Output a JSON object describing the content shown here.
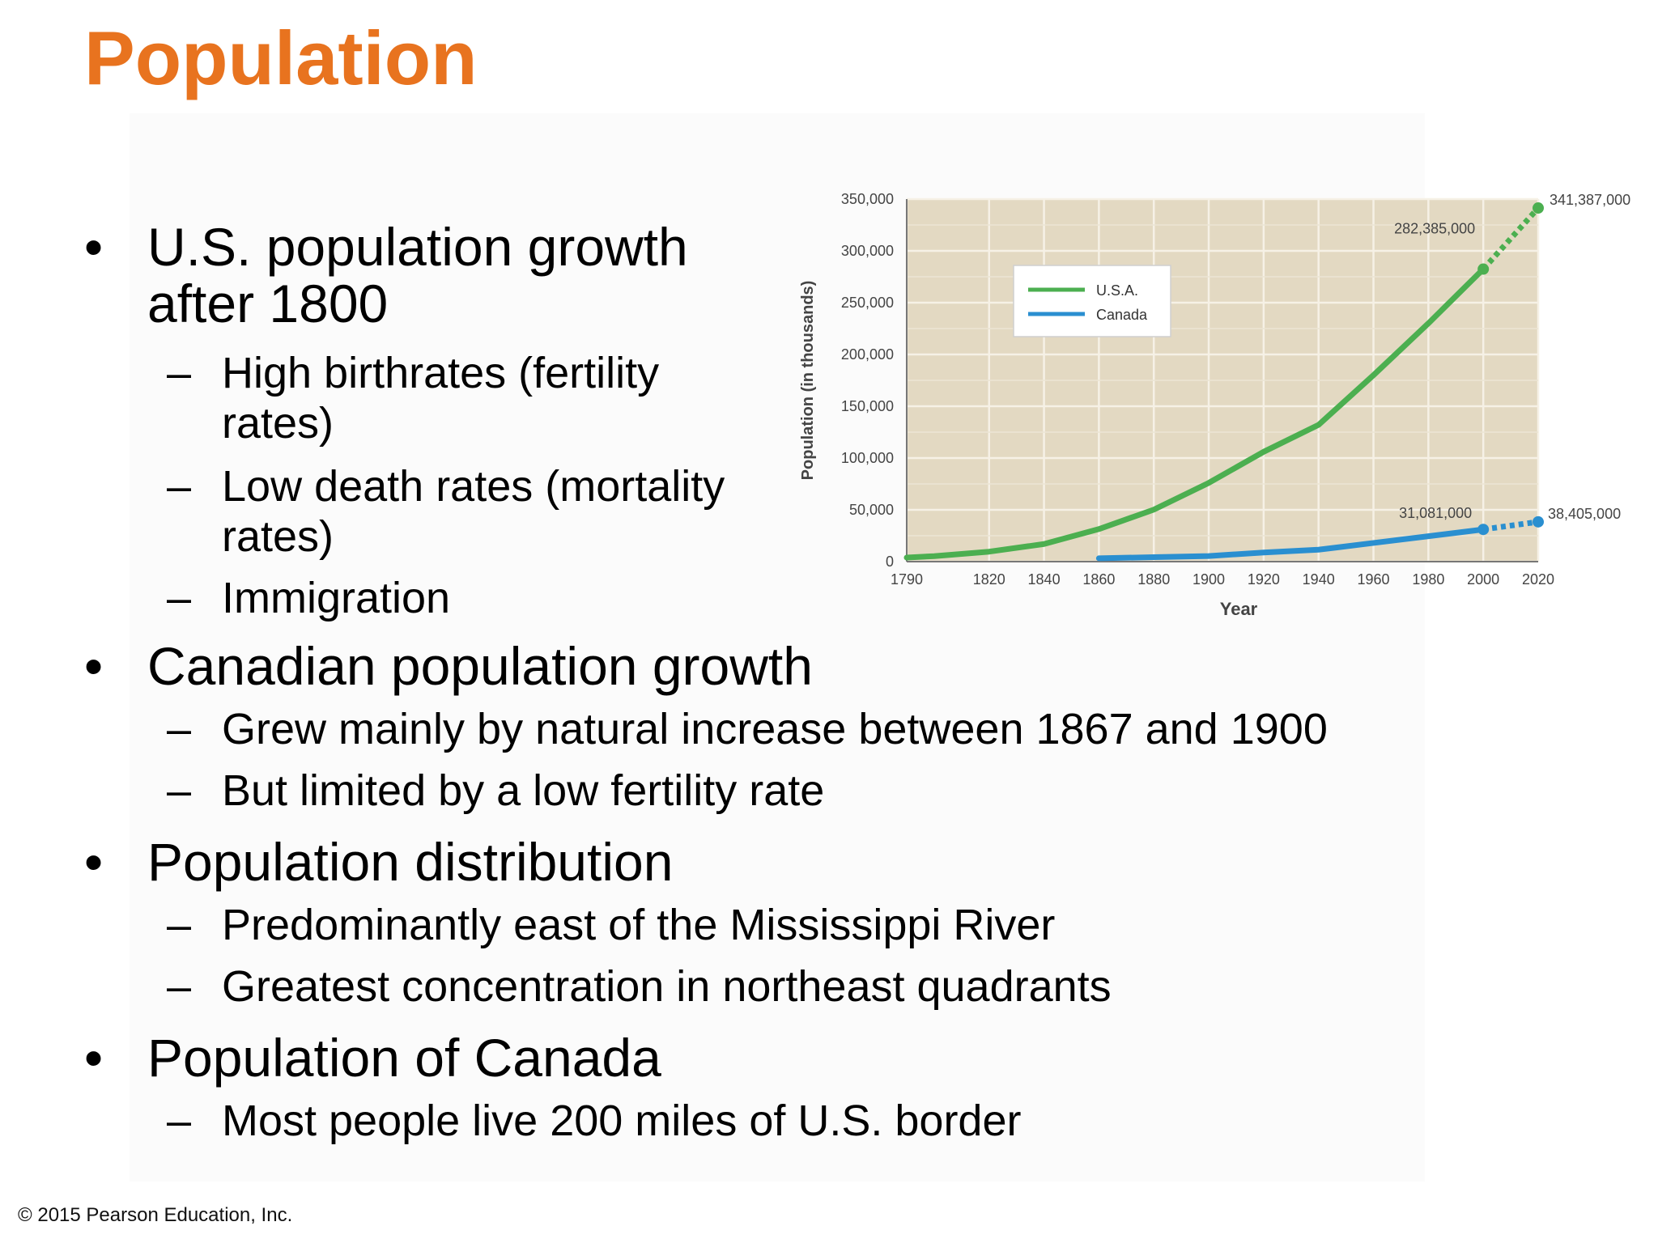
{
  "title": "Population",
  "bullets": [
    {
      "text_lines": [
        "U.S. population growth",
        "after 1800"
      ],
      "subs": [
        {
          "lines": [
            "High birthrates (fertility",
            "rates)"
          ]
        },
        {
          "lines": [
            "Low death rates (mortality",
            "rates)"
          ]
        },
        {
          "lines": [
            "Immigration"
          ]
        }
      ]
    },
    {
      "text_lines": [
        "Canadian population growth"
      ],
      "subs": [
        {
          "lines": [
            "Grew mainly by natural increase between 1867 and 1900"
          ]
        },
        {
          "lines": [
            "But limited by a low fertility rate"
          ]
        }
      ]
    },
    {
      "text_lines": [
        "Population distribution"
      ],
      "subs": [
        {
          "lines": [
            "Predominantly east of the Mississippi River"
          ]
        },
        {
          "lines": [
            "Greatest concentration in northeast quadrants"
          ]
        }
      ]
    },
    {
      "text_lines": [
        "Population of Canada"
      ],
      "subs": [
        {
          "lines": [
            "Most people live 200 miles of U.S. border"
          ]
        }
      ]
    }
  ],
  "bullet_symbol": "•",
  "dash_symbol": "–",
  "footer": "© 2015 Pearson Education, Inc.",
  "chart_data": {
    "type": "line",
    "xlabel": "Year",
    "ylabel": "Population (in thousands)",
    "xlim": [
      1790,
      2020
    ],
    "ylim": [
      0,
      350000
    ],
    "x_ticks": [
      "1790",
      "1820",
      "1840",
      "1860",
      "1880",
      "1900",
      "1920",
      "1940",
      "1960",
      "1980",
      "2000",
      "2020"
    ],
    "y_ticks": [
      "0",
      "50,000",
      "100,000",
      "150,000",
      "200,000",
      "250,000",
      "300,000",
      "350,000"
    ],
    "grid": true,
    "legend_position": "top-left",
    "series": [
      {
        "name": "U.S.A.",
        "color": "#4caf50",
        "x": [
          1790,
          1800,
          1820,
          1840,
          1860,
          1880,
          1900,
          1920,
          1940,
          1960,
          1980,
          2000
        ],
        "y": [
          3900,
          5300,
          9600,
          17000,
          31400,
          50200,
          76000,
          106000,
          132000,
          180000,
          230000,
          282385
        ],
        "projection": {
          "x": [
            2000,
            2020
          ],
          "y": [
            282385,
            341387
          ]
        }
      },
      {
        "name": "Canada",
        "color": "#2a8fd0",
        "x": [
          1860,
          1880,
          1900,
          1920,
          1940,
          1960,
          1980,
          2000
        ],
        "y": [
          3200,
          4300,
          5400,
          8800,
          11500,
          18000,
          24500,
          31081
        ],
        "projection": {
          "x": [
            2000,
            2020
          ],
          "y": [
            31081,
            38405
          ]
        }
      }
    ],
    "annotations": [
      {
        "label": "282,385,000",
        "series": "U.S.A.",
        "x": 2000
      },
      {
        "label": "341,387,000",
        "series": "U.S.A.",
        "x": 2020
      },
      {
        "label": "31,081,000",
        "series": "Canada",
        "x": 2000
      },
      {
        "label": "38,405,000",
        "series": "Canada",
        "x": 2020
      }
    ]
  }
}
